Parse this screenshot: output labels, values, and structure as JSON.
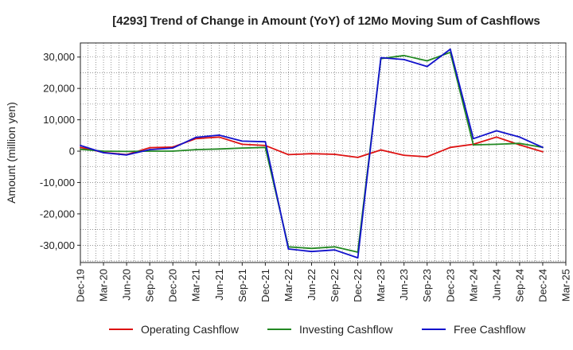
{
  "chart_data": {
    "type": "line",
    "title": "[4293]  Trend of Change in Amount (YoY) of 12Mo Moving Sum of Cashflows",
    "xlabel": "",
    "ylabel": "Amount (million yen)",
    "ylim": [
      -35500,
      34500
    ],
    "yticks": [
      30000,
      20000,
      10000,
      0,
      -10000,
      -20000,
      -30000
    ],
    "ytick_labels": [
      "30,000",
      "20,000",
      "10,000",
      "0",
      "-10,000",
      "-20,000",
      "-30,000"
    ],
    "x": [
      "Dec-19",
      "Mar-20",
      "Jun-20",
      "Sep-20",
      "Dec-20",
      "Mar-21",
      "Jun-21",
      "Sep-21",
      "Dec-21",
      "Mar-22",
      "Jun-22",
      "Sep-22",
      "Dec-22",
      "Mar-23",
      "Jun-23",
      "Sep-23",
      "Dec-23",
      "Mar-24",
      "Jun-24",
      "Sep-24",
      "Dec-24",
      "Mar-25"
    ],
    "grid": true,
    "legend_position": "bottom",
    "series": [
      {
        "name": "Operating Cashflow",
        "color": "#dd1111",
        "values": [
          1200,
          -400,
          -1100,
          1100,
          1300,
          4000,
          4500,
          2200,
          1800,
          -1100,
          -800,
          -1000,
          -2000,
          400,
          -1300,
          -1800,
          1200,
          2200,
          4500,
          2000,
          -200,
          null
        ]
      },
      {
        "name": "Investing Cashflow",
        "color": "#228822",
        "values": [
          600,
          0,
          -100,
          0,
          0,
          500,
          700,
          1000,
          1200,
          -30500,
          -31000,
          -30500,
          -32200,
          29500,
          30500,
          28800,
          31500,
          2000,
          2200,
          2500,
          1200,
          null
        ]
      },
      {
        "name": "Free Cashflow",
        "color": "#1111cc",
        "values": [
          1800,
          -500,
          -1200,
          500,
          1000,
          4400,
          5100,
          3200,
          3000,
          -31200,
          -32000,
          -31500,
          -34000,
          29800,
          29200,
          27000,
          32500,
          4000,
          6500,
          4500,
          1200,
          null
        ]
      }
    ]
  }
}
